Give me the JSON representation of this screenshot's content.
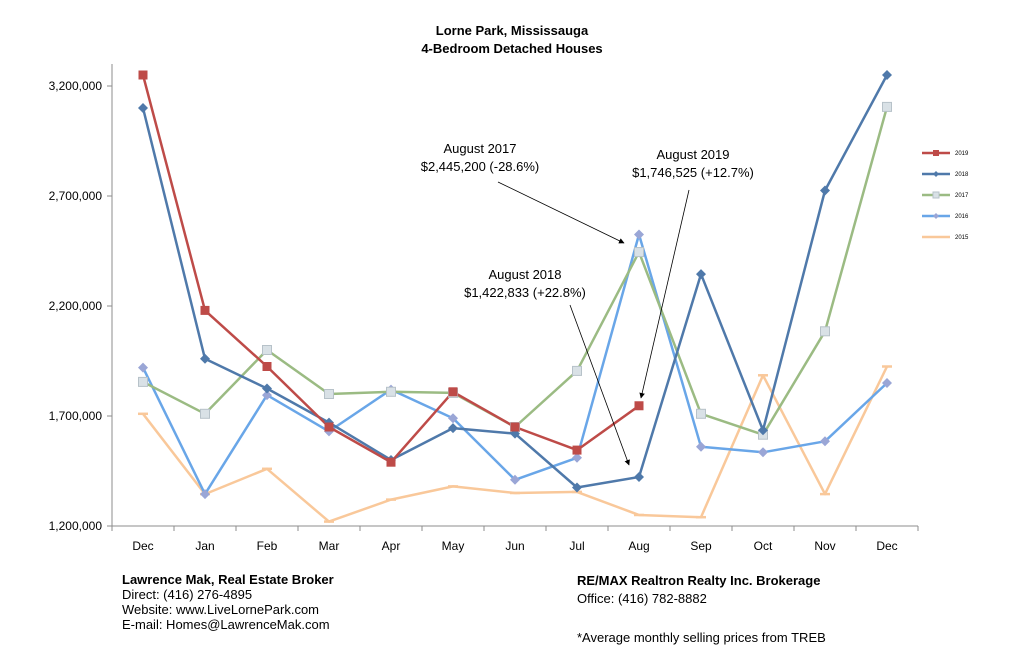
{
  "chart_data": {
    "type": "line",
    "title": "Lorne Park, Mississauga",
    "subtitle": "4-Bedroom Detached Houses",
    "categories": [
      "Dec",
      "Jan",
      "Feb",
      "Mar",
      "Apr",
      "May",
      "Jun",
      "Jul",
      "Aug",
      "Sep",
      "Oct",
      "Nov",
      "Dec"
    ],
    "y_ticks": [
      1200000,
      1700000,
      2200000,
      2700000,
      3200000
    ],
    "y_tick_labels": [
      "1,200,000",
      "1,700,000",
      "2,200,000",
      "2,700,000",
      "3,200,000"
    ],
    "ylim": [
      1200000,
      3300000
    ],
    "legend_position": "right",
    "series": [
      {
        "name": "2019",
        "color": "#be4b48",
        "marker": "square",
        "values": [
          3250000,
          2180000,
          1925000,
          1650000,
          1490000,
          1810000,
          1650000,
          1545000,
          1746525,
          null,
          null,
          null,
          null
        ]
      },
      {
        "name": "2018",
        "color": "#4f79aa",
        "marker": "diamond",
        "values": [
          3100000,
          1960000,
          1825000,
          1670000,
          1500000,
          1645000,
          1620000,
          1375000,
          1422833,
          2345000,
          1635000,
          2725000,
          3250000
        ]
      },
      {
        "name": "2017",
        "color": "#9bbb83",
        "marker": "open-square",
        "values": [
          1855000,
          1710000,
          2000000,
          1800000,
          1810000,
          1805000,
          1650000,
          1905000,
          2445200,
          1710000,
          1615000,
          2085000,
          3105000
        ]
      },
      {
        "name": "2016",
        "color": "#69a6e8",
        "marker": "diamond",
        "values": [
          1920000,
          1345000,
          1795000,
          1630000,
          1820000,
          1690000,
          1410000,
          1510000,
          2525000,
          1560000,
          1535000,
          1585000,
          1850000
        ]
      },
      {
        "name": "2015",
        "color": "#f9c89a",
        "marker": "dash",
        "values": [
          1710000,
          1345000,
          1460000,
          1220000,
          1320000,
          1380000,
          1350000,
          1355000,
          1250000,
          1240000,
          1885000,
          1345000,
          1925000
        ]
      }
    ],
    "annotations": [
      {
        "line1": "August 2017",
        "line2": "$2,445,200 (-28.6%)",
        "target_series": "2017",
        "target_index": 8
      },
      {
        "line1": "August 2019",
        "line2": "$1,746,525 (+12.7%)",
        "target_series": "2019",
        "target_index": 8
      },
      {
        "line1": "August 2018",
        "line2": "$1,422,833 (+22.8%)",
        "target_series": "2018",
        "target_index": 8
      }
    ]
  },
  "footer": {
    "left_name": "Lawrence Mak, Real Estate Broker",
    "left_direct": "Direct:  (416) 276-4895",
    "left_website": "Website:  www.LiveLornePark.com",
    "left_email": "E-mail:  Homes@LawrenceMak.com",
    "right_name": "RE/MAX Realtron Realty Inc. Brokerage",
    "right_office": "Office: (416) 782-8882",
    "note": "*Average monthly selling prices from TREB"
  }
}
